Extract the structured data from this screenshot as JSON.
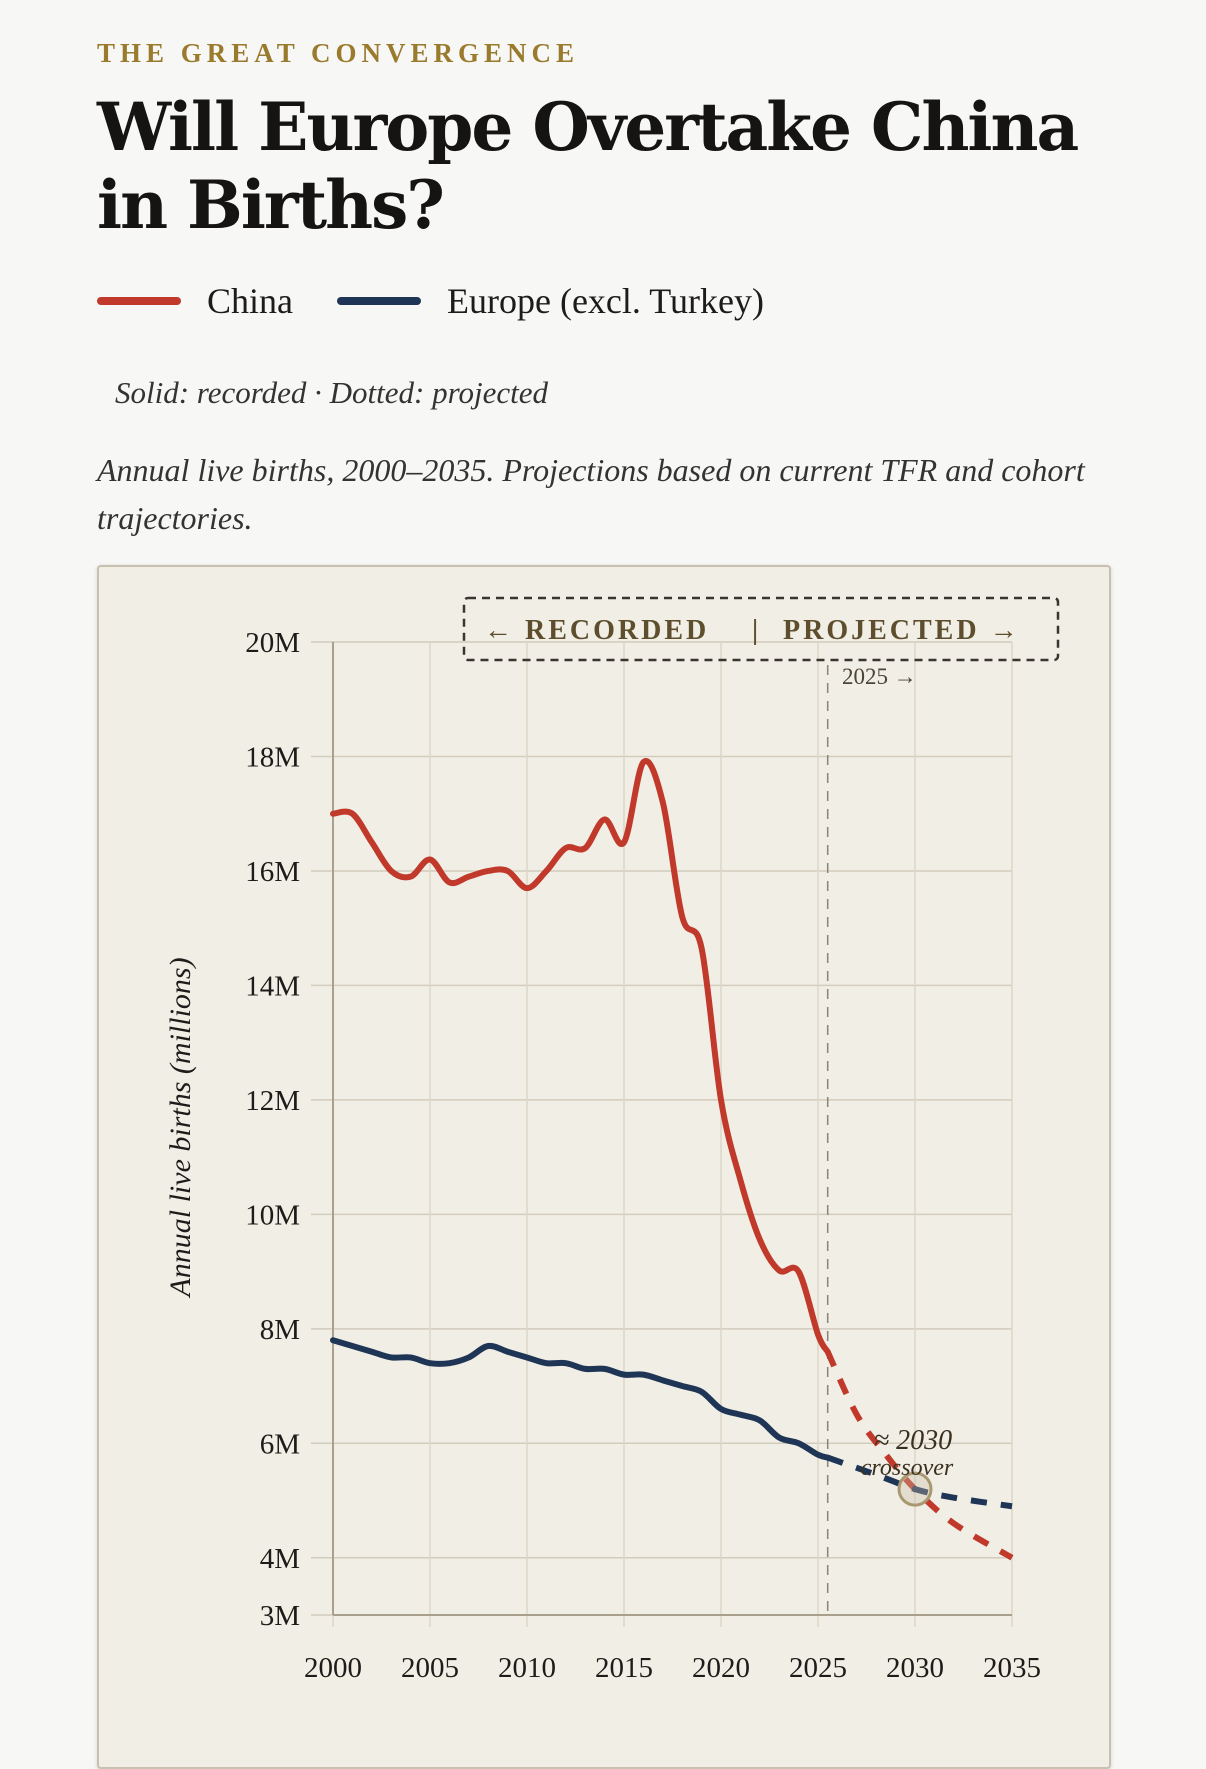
{
  "header": {
    "kicker": "THE GREAT CONVERGENCE",
    "title": "Will Europe Overtake China in Births?",
    "note": "Solid: recorded · Dotted: projected",
    "subtitle": "Annual live births, 2000–2035. Projections based on current TFR and cohort trajectories."
  },
  "chart_data": {
    "type": "line",
    "title": "Will Europe Overtake China in Births?",
    "ylabel": "Annual live births (millions)",
    "xlabel": "",
    "xlim": [
      2000,
      2035
    ],
    "ylim": [
      3,
      20
    ],
    "x_ticks": [
      "2000",
      "2005",
      "2010",
      "2015",
      "2020",
      "2025",
      "2030",
      "2035"
    ],
    "y_ticks": [
      {
        "value": 20,
        "label": "20M"
      },
      {
        "value": 18,
        "label": "18M"
      },
      {
        "value": 16,
        "label": "16M"
      },
      {
        "value": 14,
        "label": "14M"
      },
      {
        "value": 12,
        "label": "12M"
      },
      {
        "value": 10,
        "label": "10M"
      },
      {
        "value": 8,
        "label": "8M"
      },
      {
        "value": 6,
        "label": "6M"
      },
      {
        "value": 4,
        "label": "4M"
      },
      {
        "value": 3,
        "label": "3M"
      }
    ],
    "grid": true,
    "legend_position": "top",
    "recorded_projected_split": 2025.5,
    "band_labels": {
      "recorded": "← RECORDED",
      "separator": "|",
      "projected": "PROJECTED →",
      "split_year": "2025 →"
    },
    "annotation": {
      "year": 2030,
      "value": 5.2,
      "line1": "≈ 2030",
      "line2": "crossover"
    },
    "series": [
      {
        "name": "China",
        "color": "#c0392b",
        "recorded": [
          [
            2000,
            17.0
          ],
          [
            2001,
            17.0
          ],
          [
            2002,
            16.5
          ],
          [
            2003,
            16.0
          ],
          [
            2004,
            15.9
          ],
          [
            2005,
            16.2
          ],
          [
            2006,
            15.8
          ],
          [
            2007,
            15.9
          ],
          [
            2008,
            16.0
          ],
          [
            2009,
            16.0
          ],
          [
            2010,
            15.7
          ],
          [
            2011,
            16.0
          ],
          [
            2012,
            16.4
          ],
          [
            2013,
            16.4
          ],
          [
            2014,
            16.9
          ],
          [
            2015,
            16.5
          ],
          [
            2016,
            17.9
          ],
          [
            2017,
            17.2
          ],
          [
            2018,
            15.2
          ],
          [
            2019,
            14.65
          ],
          [
            2020,
            12.0
          ],
          [
            2021,
            10.6
          ],
          [
            2022,
            9.56
          ],
          [
            2023,
            9.02
          ],
          [
            2024,
            9.0
          ],
          [
            2025,
            7.9
          ],
          [
            2025.5,
            7.6
          ]
        ],
        "projected": [
          [
            2025.5,
            7.6
          ],
          [
            2027,
            6.5
          ],
          [
            2028.5,
            5.8
          ],
          [
            2030,
            5.2
          ],
          [
            2032,
            4.6
          ],
          [
            2035,
            4.0
          ]
        ]
      },
      {
        "name": "Europe (excl. Turkey)",
        "color": "#1f3556",
        "recorded": [
          [
            2000,
            7.8
          ],
          [
            2001,
            7.7
          ],
          [
            2002,
            7.6
          ],
          [
            2003,
            7.5
          ],
          [
            2004,
            7.5
          ],
          [
            2005,
            7.4
          ],
          [
            2006,
            7.4
          ],
          [
            2007,
            7.5
          ],
          [
            2008,
            7.7
          ],
          [
            2009,
            7.6
          ],
          [
            2010,
            7.5
          ],
          [
            2011,
            7.4
          ],
          [
            2012,
            7.4
          ],
          [
            2013,
            7.3
          ],
          [
            2014,
            7.3
          ],
          [
            2015,
            7.2
          ],
          [
            2016,
            7.2
          ],
          [
            2017,
            7.1
          ],
          [
            2018,
            7.0
          ],
          [
            2019,
            6.9
          ],
          [
            2020,
            6.6
          ],
          [
            2021,
            6.5
          ],
          [
            2022,
            6.4
          ],
          [
            2023,
            6.1
          ],
          [
            2024,
            6.0
          ],
          [
            2025,
            5.8
          ],
          [
            2025.5,
            5.75
          ]
        ],
        "projected": [
          [
            2025.5,
            5.75
          ],
          [
            2028,
            5.45
          ],
          [
            2030,
            5.2
          ],
          [
            2032,
            5.05
          ],
          [
            2035,
            4.9
          ]
        ]
      }
    ]
  }
}
